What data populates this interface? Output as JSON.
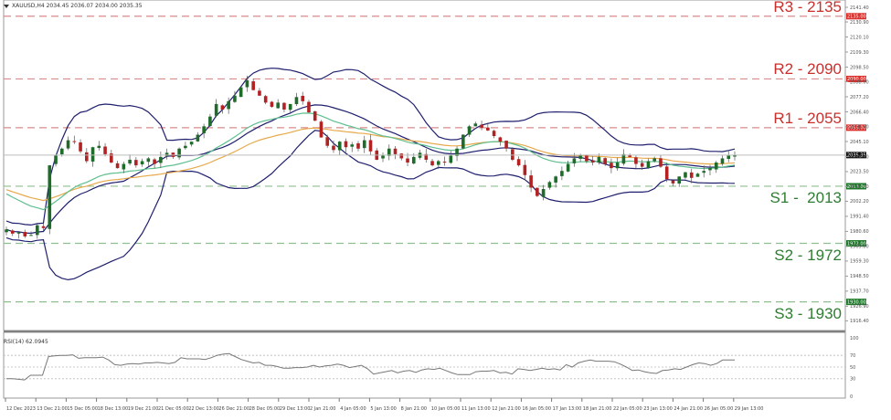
{
  "header": {
    "symbol": "XAUUSD,H4",
    "open": "2034.45",
    "high": "2036.07",
    "low": "2034.00",
    "close": "2035.35",
    "text": "XAUUSD,H4  2034.45 2036.07 2034.00 2035.35"
  },
  "levels": [
    {
      "name": "R3",
      "label": "R3 - 2135",
      "value": 2135,
      "tag": "2135.00",
      "color": "#c9302c",
      "line_color": "#d98c8c"
    },
    {
      "name": "R2",
      "label": "R2 - 2090",
      "value": 2090,
      "tag": "2090.00",
      "color": "#c9302c",
      "line_color": "#d98c8c"
    },
    {
      "name": "R1",
      "label": "R1 - 2055",
      "value": 2055,
      "tag": "2055.00",
      "color": "#c9302c",
      "line_color": "#d98c8c"
    },
    {
      "name": "S1",
      "label": "S1 -  2013",
      "value": 2013,
      "tag": "2013.00",
      "color": "#2e7d32",
      "line_color": "#8fbf8f"
    },
    {
      "name": "S2",
      "label": "S2 - 1972",
      "value": 1972,
      "tag": "1972.00",
      "color": "#2e7d32",
      "line_color": "#8fbf8f"
    },
    {
      "name": "S3",
      "label": "S3 - 1930",
      "value": 1930,
      "tag": "1930.00",
      "color": "#2e7d32",
      "line_color": "#8fbf8f"
    }
  ],
  "current_price": {
    "value": 2035.35,
    "tag": "2035.35",
    "color": "#111111"
  },
  "rsi": {
    "label": "RSI(14) 62.0945",
    "levels": [
      70,
      50,
      30
    ],
    "axis": [
      "100",
      "70",
      "50",
      "30",
      "0"
    ]
  },
  "colors": {
    "bull": "#1f6b2a",
    "bear": "#b22222",
    "bollinger": "#1f1f6e",
    "ma_fast": "#5fbf8f",
    "ma_slow": "#e8a84a",
    "rsi_line": "#777777",
    "axis": "#999999"
  },
  "chart_data": {
    "type": "candlestick",
    "title": "XAUUSD,H4",
    "xlabel": "",
    "ylabel": "",
    "ylim": [
      1916.0,
      2141.4
    ],
    "y_ticks": [
      "2141.40",
      "2130.90",
      "2120.10",
      "2109.30",
      "2098.50",
      "2088.00",
      "2077.20",
      "2066.40",
      "2055.60",
      "2045.10",
      "2034.30",
      "2023.50",
      "2012.70",
      "2002.20",
      "1991.40",
      "1980.60",
      "1969.80",
      "1959.30",
      "1948.50",
      "1937.70",
      "1926.90",
      "1916.40"
    ],
    "x_ticks": [
      "12 Dec 2023",
      "13 Dec 21:00",
      "15 Dec 05:00",
      "18 Dec 13:00",
      "19 Dec 21:00",
      "21 Dec 05:00",
      "22 Dec 13:00",
      "26 Dec 21:00",
      "28 Dec 05:00",
      "29 Dec 13:00",
      "2 Jan 21:00",
      "4 Jan 05:00",
      "5 Jan 13:00",
      "8 Jan 21:00",
      "10 Jan 05:00",
      "11 Jan 13:00",
      "12 Jan 21:00",
      "16 Jan 05:00",
      "17 Jan 13:00",
      "18 Jan 21:00",
      "22 Jan 05:00",
      "23 Jan 13:00",
      "24 Jan 21:00",
      "26 Jan 05:00",
      "29 Jan 13:00"
    ],
    "horizontal_lines": [
      {
        "label": "R3 - 2135",
        "value": 2135
      },
      {
        "label": "R2 - 2090",
        "value": 2090
      },
      {
        "label": "R1 - 2055",
        "value": 2055
      },
      {
        "label": "S1 - 2013",
        "value": 2013
      },
      {
        "label": "S2 - 1972",
        "value": 1972
      },
      {
        "label": "S3 - 1930",
        "value": 1930
      }
    ],
    "last_price": 2035.35,
    "close_path": [
      1982,
      1979,
      1980,
      1977,
      1978,
      1985,
      1983,
      2028,
      2035,
      2040,
      2046,
      2045,
      2038,
      2031,
      2041,
      2042,
      2036,
      2030,
      2026,
      2029,
      2032,
      2028,
      2031,
      2033,
      2029,
      2034,
      2037,
      2034,
      2040,
      2042,
      2045,
      2050,
      2056,
      2063,
      2072,
      2068,
      2074,
      2078,
      2084,
      2089,
      2082,
      2078,
      2073,
      2070,
      2073,
      2068,
      2072,
      2077,
      2074,
      2066,
      2060,
      2048,
      2042,
      2039,
      2045,
      2041,
      2043,
      2040,
      2046,
      2038,
      2032,
      2035,
      2040,
      2036,
      2033,
      2030,
      2034,
      2037,
      2032,
      2028,
      2031,
      2030,
      2035,
      2040,
      2050,
      2056,
      2058,
      2055,
      2053,
      2049,
      2045,
      2040,
      2032,
      2028,
      2021,
      2012,
      2006,
      2011,
      2016,
      2020,
      2024,
      2029,
      2033,
      2035,
      2031,
      2030,
      2034,
      2029,
      2026,
      2030,
      2036,
      2034,
      2029,
      2027,
      2031,
      2033,
      2027,
      2018,
      2015,
      2020,
      2023,
      2019,
      2022,
      2024,
      2026,
      2030,
      2033,
      2035,
      2035.35
    ],
    "rsi_path": [
      30,
      30,
      29,
      28,
      36,
      36,
      36,
      68,
      69,
      70,
      70,
      71,
      65,
      66,
      66,
      66,
      67,
      62,
      54,
      53,
      55,
      56,
      55,
      57,
      57,
      58,
      57,
      56,
      58,
      66,
      64,
      64,
      64,
      63,
      66,
      70,
      72,
      73,
      68,
      63,
      60,
      57,
      58,
      53,
      53,
      51,
      48,
      48,
      49,
      49,
      50,
      53,
      50,
      52,
      53,
      55,
      53,
      49,
      51,
      53,
      47,
      38,
      40,
      42,
      44,
      40,
      43,
      44,
      41,
      45,
      47,
      46,
      48,
      44,
      40,
      37,
      37,
      37,
      42,
      43,
      43,
      44,
      40,
      41,
      38,
      47,
      46,
      44,
      46,
      48,
      46,
      47,
      45,
      54,
      50,
      57,
      60,
      62,
      60,
      60,
      60,
      59,
      55,
      50,
      44,
      45,
      42,
      40,
      39,
      44,
      45,
      47,
      46,
      50,
      54,
      57,
      56,
      53,
      56,
      62,
      62,
      62.09
    ],
    "series": [
      {
        "name": "Bollinger Bands (upper/middle/lower)",
        "color": "#1f1f6e"
      },
      {
        "name": "MA fast",
        "color": "#5fbf8f"
      },
      {
        "name": "MA slow",
        "color": "#e8a84a"
      },
      {
        "name": "RSI(14)",
        "value": 62.0945
      }
    ]
  }
}
